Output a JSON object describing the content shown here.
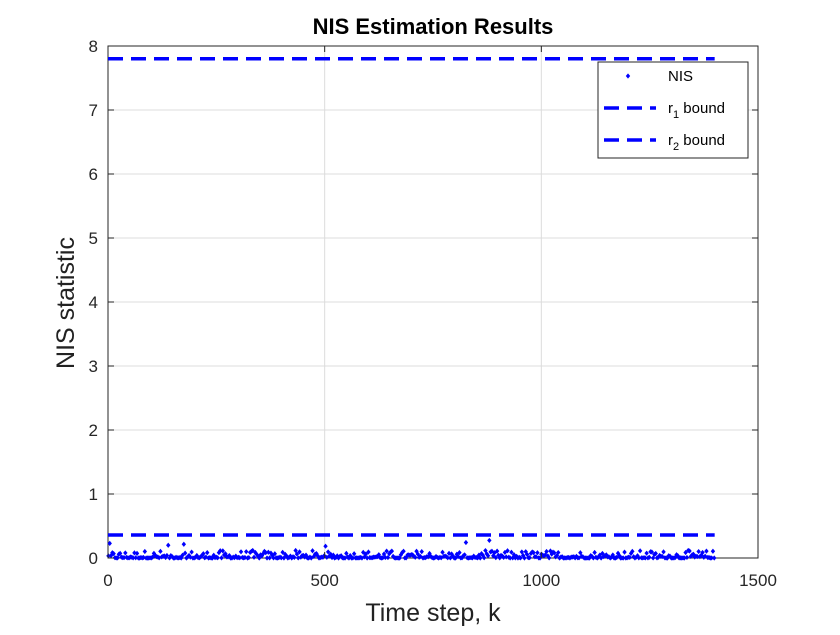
{
  "chart_data": {
    "type": "scatter",
    "title": "NIS Estimation Results",
    "xlabel": "Time step, k",
    "ylabel": "NIS statistic",
    "xlim": [
      0,
      1500
    ],
    "ylim": [
      0,
      8
    ],
    "xticks": [
      0,
      500,
      1000,
      1500
    ],
    "yticks": [
      0,
      1,
      2,
      3,
      4,
      5,
      6,
      7,
      8
    ],
    "grid": true,
    "legend_position": "top-right",
    "legend": [
      {
        "label": "NIS",
        "sub": "",
        "rest": "",
        "style": "marker"
      },
      {
        "label": "r",
        "sub": "1",
        "rest": " bound",
        "style": "dashed"
      },
      {
        "label": "r",
        "sub": "2",
        "rest": " bound",
        "style": "dashed"
      }
    ],
    "series": [
      {
        "name": "NIS",
        "color": "#0000ff",
        "marker": "diamond",
        "n_points": 1400,
        "x_range": [
          1,
          1400
        ],
        "y_typical_max": 0.12,
        "y_peak": 0.28
      },
      {
        "name": "r1 bound",
        "color": "#0000ff",
        "style": "dashed",
        "y": 7.8,
        "x_range": [
          0,
          1400
        ]
      },
      {
        "name": "r2 bound",
        "color": "#0000ff",
        "style": "dashed",
        "y": 0.36,
        "x_range": [
          0,
          1400
        ]
      }
    ]
  }
}
